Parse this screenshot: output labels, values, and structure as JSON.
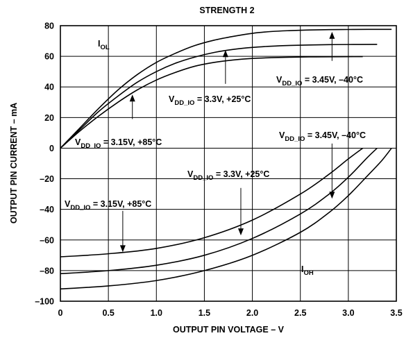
{
  "chart_data": {
    "type": "line",
    "title": "STRENGTH 2",
    "xlabel": "OUTPUT PIN VOLTAGE – V",
    "ylabel": "OUTPUT PIN CURRENT – mA",
    "xlim": [
      0,
      3.5
    ],
    "ylim": [
      -100,
      80
    ],
    "x_ticks": [
      "0",
      "0.5",
      "1.0",
      "1.5",
      "2.0",
      "2.5",
      "3.0",
      "3.5"
    ],
    "y_ticks": [
      "80",
      "60",
      "40",
      "20",
      "0",
      "–20",
      "–40",
      "–60",
      "–80",
      "–100"
    ],
    "grid": true,
    "series": [
      {
        "group": "IOL",
        "condition": "3.45V, –40°C",
        "points": [
          [
            0,
            0
          ],
          [
            0.2,
            13
          ],
          [
            0.4,
            26
          ],
          [
            0.6,
            38
          ],
          [
            0.8,
            48
          ],
          [
            1.0,
            56
          ],
          [
            1.2,
            62
          ],
          [
            1.4,
            67
          ],
          [
            1.6,
            70.5
          ],
          [
            1.8,
            73
          ],
          [
            2.0,
            75
          ],
          [
            2.2,
            76.2
          ],
          [
            2.4,
            76.8
          ],
          [
            2.6,
            77.2
          ],
          [
            2.8,
            77.4
          ],
          [
            3.0,
            77.5
          ],
          [
            3.2,
            77.6
          ],
          [
            3.45,
            77.6
          ]
        ]
      },
      {
        "group": "IOL",
        "condition": "3.3V, +25°C",
        "points": [
          [
            0,
            0
          ],
          [
            0.2,
            12
          ],
          [
            0.4,
            24
          ],
          [
            0.6,
            34
          ],
          [
            0.8,
            43
          ],
          [
            1.0,
            50
          ],
          [
            1.2,
            55.5
          ],
          [
            1.4,
            59.5
          ],
          [
            1.6,
            62.5
          ],
          [
            1.8,
            64.5
          ],
          [
            2.0,
            65.8
          ],
          [
            2.2,
            66.6
          ],
          [
            2.4,
            67.1
          ],
          [
            2.6,
            67.4
          ],
          [
            2.8,
            67.6
          ],
          [
            3.0,
            67.7
          ],
          [
            3.3,
            67.8
          ]
        ]
      },
      {
        "group": "IOL",
        "condition": "3.15V, +85°C",
        "points": [
          [
            0,
            0
          ],
          [
            0.2,
            11
          ],
          [
            0.4,
            21
          ],
          [
            0.6,
            30
          ],
          [
            0.8,
            38
          ],
          [
            1.0,
            44.5
          ],
          [
            1.2,
            49.5
          ],
          [
            1.4,
            53.5
          ],
          [
            1.6,
            56
          ],
          [
            1.8,
            57.6
          ],
          [
            2.0,
            58.6
          ],
          [
            2.2,
            59.1
          ],
          [
            2.4,
            59.4
          ],
          [
            2.6,
            59.6
          ],
          [
            2.8,
            59.7
          ],
          [
            3.15,
            59.8
          ]
        ]
      },
      {
        "group": "IOH",
        "condition": "3.45V, –40°C",
        "points": [
          [
            0,
            -92
          ],
          [
            0.5,
            -90
          ],
          [
            1.0,
            -86.5
          ],
          [
            1.5,
            -80
          ],
          [
            2.0,
            -70
          ],
          [
            2.5,
            -55
          ],
          [
            2.8,
            -42
          ],
          [
            3.0,
            -31
          ],
          [
            3.2,
            -18
          ],
          [
            3.35,
            -8
          ],
          [
            3.45,
            0
          ]
        ]
      },
      {
        "group": "IOH",
        "condition": "3.3V, +25°C",
        "points": [
          [
            0,
            -82
          ],
          [
            0.5,
            -80
          ],
          [
            1.0,
            -76.5
          ],
          [
            1.5,
            -70
          ],
          [
            2.0,
            -59
          ],
          [
            2.5,
            -43
          ],
          [
            2.8,
            -30
          ],
          [
            3.0,
            -19
          ],
          [
            3.2,
            -6
          ],
          [
            3.3,
            0
          ]
        ]
      },
      {
        "group": "IOH",
        "condition": "3.15V, +85°C",
        "points": [
          [
            0,
            -71
          ],
          [
            0.5,
            -69
          ],
          [
            1.0,
            -65.5
          ],
          [
            1.5,
            -58.5
          ],
          [
            2.0,
            -47
          ],
          [
            2.5,
            -30
          ],
          [
            2.8,
            -17
          ],
          [
            3.0,
            -7
          ],
          [
            3.15,
            0
          ]
        ]
      }
    ],
    "annotations": {
      "iol": {
        "main": "I",
        "sub": "OL"
      },
      "ioh": {
        "main": "I",
        "sub": "OH"
      },
      "iol_345": {
        "pre": "V",
        "sub": "DD_IO",
        "post": " = 3.45V, –40°C"
      },
      "iol_33": {
        "pre": "V",
        "sub": "DD_IO",
        "post": " = 3.3V, +25°C"
      },
      "iol_315": {
        "pre": "V",
        "sub": "DD_IO",
        "post": " = 3.15V, +85°C"
      },
      "ioh_345": {
        "pre": "V",
        "sub": "DD_IO",
        "post": " = 3.45V, –40°C"
      },
      "ioh_33": {
        "pre": "V",
        "sub": "DD_IO",
        "post": " = 3.3V, +25°C"
      },
      "ioh_315": {
        "pre": "V",
        "sub": "DD_IO",
        "post": " = 3.15V, +85°C"
      }
    }
  }
}
